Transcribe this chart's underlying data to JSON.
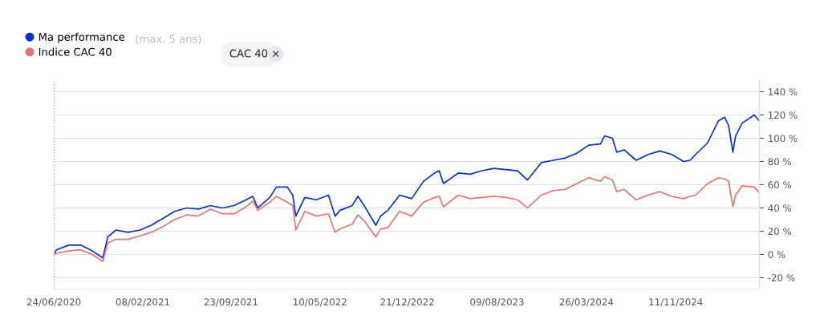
{
  "chart_data": {
    "type": "line",
    "x": [
      "2020-06-24",
      "2020-07-01",
      "2020-08-01",
      "2020-09-01",
      "2020-10-01",
      "2020-10-28",
      "2020-11-10",
      "2020-12-01",
      "2021-01-01",
      "2021-02-01",
      "2021-03-01",
      "2021-04-01",
      "2021-05-01",
      "2021-06-01",
      "2021-07-01",
      "2021-08-01",
      "2021-09-01",
      "2021-10-01",
      "2021-11-01",
      "2021-11-18",
      "2021-12-01",
      "2022-01-01",
      "2022-01-18",
      "2022-02-15",
      "2022-03-01",
      "2022-03-09",
      "2022-04-01",
      "2022-05-01",
      "2022-06-01",
      "2022-06-18",
      "2022-07-01",
      "2022-08-01",
      "2022-08-16",
      "2022-09-01",
      "2022-10-01",
      "2022-10-13",
      "2022-11-01",
      "2022-12-01",
      "2023-01-01",
      "2023-02-01",
      "2023-03-01",
      "2023-03-13",
      "2023-03-24",
      "2023-05-01",
      "2023-06-01",
      "2023-07-01",
      "2023-08-01",
      "2023-09-01",
      "2023-10-01",
      "2023-10-26",
      "2023-12-01",
      "2024-01-01",
      "2024-02-01",
      "2024-03-01",
      "2024-04-01",
      "2024-05-01",
      "2024-05-12",
      "2024-06-01",
      "2024-06-12",
      "2024-07-01",
      "2024-08-01",
      "2024-09-01",
      "2024-10-01",
      "2024-11-01",
      "2024-12-01",
      "2024-12-18",
      "2025-01-01",
      "2025-02-01",
      "2025-03-01",
      "2025-03-17",
      "2025-03-27",
      "2025-04-07",
      "2025-04-14",
      "2025-05-01",
      "2025-06-01",
      "2025-06-14"
    ],
    "series": [
      {
        "name": "Ma performance",
        "color": "#0a2ed6",
        "values": [
          0,
          4,
          8,
          8,
          3,
          -3,
          15,
          21,
          19,
          21,
          25,
          31,
          37,
          40,
          39,
          42,
          40,
          42,
          47,
          50,
          40,
          49,
          58,
          58,
          51,
          33,
          49,
          47,
          51,
          33,
          38,
          42,
          50,
          42,
          25,
          33,
          38,
          51,
          48,
          63,
          70,
          72,
          61,
          70,
          69,
          72,
          74,
          73,
          72,
          64,
          79,
          81,
          83,
          87,
          94,
          95,
          102,
          100,
          88,
          90,
          81,
          86,
          89,
          86,
          80,
          81,
          86,
          96,
          115,
          118,
          111,
          88,
          102,
          113,
          120,
          115
        ]
      },
      {
        "name": "Indice CAC 40",
        "color": "#e07575",
        "values": [
          0,
          1,
          3,
          4,
          0,
          -6,
          10,
          13,
          13,
          16,
          19,
          24,
          30,
          34,
          33,
          39,
          35,
          35,
          41,
          46,
          38,
          45,
          50,
          45,
          42,
          21,
          37,
          33,
          35,
          19,
          22,
          26,
          34,
          29,
          15,
          22,
          23,
          37,
          33,
          45,
          49,
          50,
          41,
          51,
          48,
          49,
          50,
          49,
          47,
          40,
          51,
          55,
          56,
          61,
          66,
          63,
          67,
          64,
          54,
          56,
          47,
          51,
          54,
          50,
          48,
          50,
          51,
          61,
          66,
          65,
          63,
          41,
          51,
          59,
          58,
          53
        ]
      }
    ],
    "xlim": [
      "2020-06-24",
      "2025-06-14"
    ],
    "xticks": [
      {
        "value": "2020-06-24",
        "label": "24/06/2020"
      },
      {
        "value": "2021-02-08",
        "label": "08/02/2021"
      },
      {
        "value": "2021-09-23",
        "label": "23/09/2021"
      },
      {
        "value": "2022-05-10",
        "label": "10/05/2022"
      },
      {
        "value": "2022-12-21",
        "label": "21/12/2022"
      },
      {
        "value": "2023-08-09",
        "label": "09/08/2023"
      },
      {
        "value": "2024-03-26",
        "label": "26/03/2024"
      },
      {
        "value": "2024-11-11",
        "label": "11/11/2024"
      }
    ],
    "ylim": [
      -30,
      150
    ],
    "yticks": [
      {
        "value": -20,
        "label": "-20 %"
      },
      {
        "value": 0,
        "label": "0 %"
      },
      {
        "value": 20,
        "label": "20 %"
      },
      {
        "value": 40,
        "label": "40 %"
      },
      {
        "value": 60,
        "label": "60 %"
      },
      {
        "value": 80,
        "label": "80 %"
      },
      {
        "value": 100,
        "label": "100 %"
      },
      {
        "value": 120,
        "label": "120 %"
      },
      {
        "value": 140,
        "label": "140 %"
      }
    ],
    "grid": "y",
    "legend": "top left",
    "ref_lines": [
      {
        "axis": "x",
        "value": "2020-06-24",
        "color": "#333333",
        "line_style": "dotted"
      }
    ],
    "annotations": [
      "(max. 5 ans)",
      "CAC 40",
      "×"
    ]
  }
}
